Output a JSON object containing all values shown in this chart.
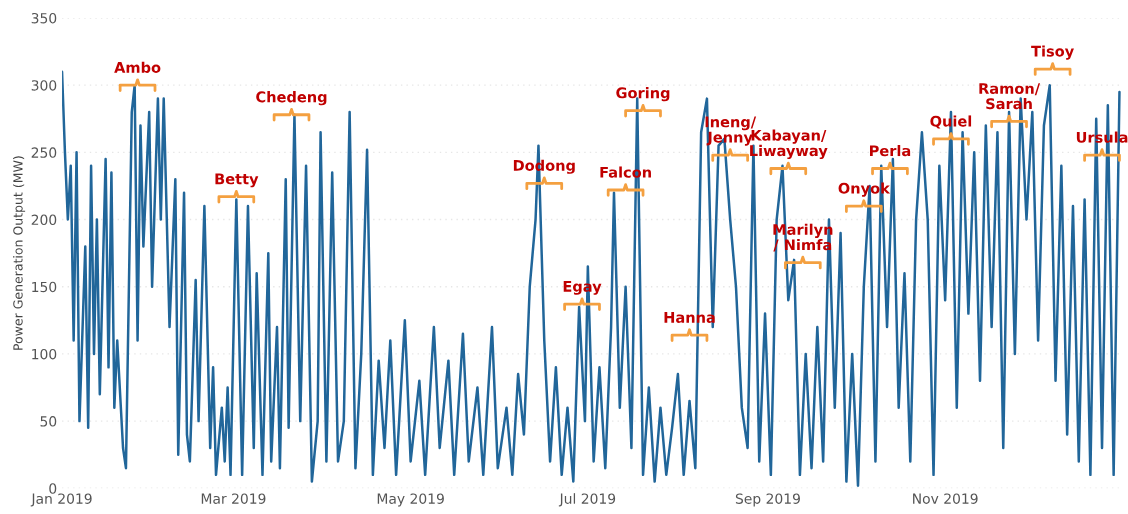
{
  "chart_data": {
    "type": "line",
    "ylabel": "Power Generation Output (MW)",
    "x": [
      "2019-01-01",
      "2019-01-02",
      "2019-01-03",
      "2019-01-04",
      "2019-01-05",
      "2019-01-06",
      "2019-01-07",
      "2019-01-09",
      "2019-01-10",
      "2019-01-11",
      "2019-01-12",
      "2019-01-13",
      "2019-01-14",
      "2019-01-16",
      "2019-01-17",
      "2019-01-18",
      "2019-01-19",
      "2019-01-20",
      "2019-01-22",
      "2019-01-23",
      "2019-01-25",
      "2019-01-26",
      "2019-01-27",
      "2019-01-28",
      "2019-01-29",
      "2019-01-31",
      "2019-02-01",
      "2019-02-03",
      "2019-02-04",
      "2019-02-05",
      "2019-02-07",
      "2019-02-09",
      "2019-02-10",
      "2019-02-12",
      "2019-02-13",
      "2019-02-14",
      "2019-02-16",
      "2019-02-17",
      "2019-02-19",
      "2019-02-21",
      "2019-02-22",
      "2019-02-23",
      "2019-02-25",
      "2019-02-26",
      "2019-02-27",
      "2019-02-28",
      "2019-03-02",
      "2019-03-04",
      "2019-03-06",
      "2019-03-08",
      "2019-03-09",
      "2019-03-11",
      "2019-03-13",
      "2019-03-14",
      "2019-03-16",
      "2019-03-17",
      "2019-03-19",
      "2019-03-20",
      "2019-03-22",
      "2019-03-24",
      "2019-03-26",
      "2019-03-28",
      "2019-03-30",
      "2019-03-31",
      "2019-04-02",
      "2019-04-04",
      "2019-04-06",
      "2019-04-08",
      "2019-04-10",
      "2019-04-12",
      "2019-04-14",
      "2019-04-16",
      "2019-04-18",
      "2019-04-20",
      "2019-04-22",
      "2019-04-24",
      "2019-04-26",
      "2019-04-29",
      "2019-05-01",
      "2019-05-04",
      "2019-05-06",
      "2019-05-09",
      "2019-05-11",
      "2019-05-14",
      "2019-05-16",
      "2019-05-19",
      "2019-05-21",
      "2019-05-24",
      "2019-05-26",
      "2019-05-29",
      "2019-05-31",
      "2019-06-03",
      "2019-06-05",
      "2019-06-07",
      "2019-06-09",
      "2019-06-11",
      "2019-06-13",
      "2019-06-14",
      "2019-06-16",
      "2019-06-18",
      "2019-06-20",
      "2019-06-22",
      "2019-06-24",
      "2019-06-26",
      "2019-06-28",
      "2019-06-30",
      "2019-07-01",
      "2019-07-03",
      "2019-07-05",
      "2019-07-07",
      "2019-07-09",
      "2019-07-10",
      "2019-07-12",
      "2019-07-14",
      "2019-07-16",
      "2019-07-18",
      "2019-07-20",
      "2019-07-22",
      "2019-07-24",
      "2019-07-26",
      "2019-07-28",
      "2019-07-30",
      "2019-08-01",
      "2019-08-03",
      "2019-08-05",
      "2019-08-07",
      "2019-08-09",
      "2019-08-11",
      "2019-08-13",
      "2019-08-15",
      "2019-08-17",
      "2019-08-19",
      "2019-08-21",
      "2019-08-23",
      "2019-08-25",
      "2019-08-27",
      "2019-08-29",
      "2019-08-31",
      "2019-09-02",
      "2019-09-04",
      "2019-09-06",
      "2019-09-08",
      "2019-09-10",
      "2019-09-12",
      "2019-09-14",
      "2019-09-16",
      "2019-09-18",
      "2019-09-20",
      "2019-09-22",
      "2019-09-24",
      "2019-09-26",
      "2019-09-28",
      "2019-09-30",
      "2019-10-02",
      "2019-10-04",
      "2019-10-06",
      "2019-10-08",
      "2019-10-10",
      "2019-10-12",
      "2019-10-14",
      "2019-10-16",
      "2019-10-18",
      "2019-10-20",
      "2019-10-22",
      "2019-10-24",
      "2019-10-26",
      "2019-10-28",
      "2019-10-30",
      "2019-11-01",
      "2019-11-03",
      "2019-11-05",
      "2019-11-07",
      "2019-11-09",
      "2019-11-11",
      "2019-11-13",
      "2019-11-15",
      "2019-11-17",
      "2019-11-19",
      "2019-11-21",
      "2019-11-23",
      "2019-11-25",
      "2019-11-27",
      "2019-11-29",
      "2019-12-01",
      "2019-12-03",
      "2019-12-05",
      "2019-12-07",
      "2019-12-09",
      "2019-12-11",
      "2019-12-13",
      "2019-12-15",
      "2019-12-17",
      "2019-12-19",
      "2019-12-21",
      "2019-12-23",
      "2019-12-25",
      "2019-12-27",
      "2019-12-29",
      "2019-12-31"
    ],
    "series": [
      {
        "color": "#21669a",
        "values": [
          310,
          250,
          200,
          240,
          110,
          250,
          50,
          180,
          45,
          240,
          100,
          200,
          70,
          245,
          90,
          235,
          60,
          110,
          30,
          15,
          280,
          300,
          110,
          270,
          180,
          280,
          150,
          290,
          200,
          290,
          120,
          230,
          25,
          220,
          40,
          20,
          155,
          50,
          210,
          30,
          90,
          10,
          60,
          20,
          75,
          10,
          215,
          10,
          210,
          30,
          160,
          10,
          175,
          20,
          120,
          15,
          230,
          45,
          278,
          50,
          240,
          5,
          50,
          265,
          20,
          235,
          20,
          50,
          280,
          15,
          100,
          252,
          10,
          95,
          30,
          110,
          10,
          125,
          20,
          80,
          10,
          120,
          30,
          95,
          10,
          115,
          20,
          75,
          10,
          120,
          15,
          60,
          10,
          85,
          40,
          150,
          200,
          255,
          110,
          20,
          90,
          10,
          60,
          5,
          135,
          50,
          165,
          20,
          90,
          15,
          120,
          220,
          60,
          150,
          30,
          290,
          10,
          75,
          5,
          60,
          10,
          45,
          85,
          10,
          65,
          15,
          265,
          290,
          120,
          255,
          260,
          200,
          150,
          60,
          30,
          255,
          20,
          130,
          10,
          200,
          240,
          140,
          170,
          10,
          100,
          15,
          120,
          20,
          200,
          60,
          190,
          5,
          100,
          2,
          150,
          225,
          20,
          240,
          120,
          245,
          60,
          160,
          20,
          200,
          265,
          200,
          10,
          240,
          140,
          280,
          60,
          265,
          130,
          250,
          80,
          270,
          120,
          265,
          30,
          280,
          100,
          290,
          200,
          280,
          110,
          270,
          300,
          80,
          240,
          40,
          210,
          20,
          215,
          10,
          275,
          30,
          285,
          10,
          295
        ]
      }
    ],
    "xlim": [
      "2019-01-01",
      "2020-01-01"
    ],
    "xticks": [
      {
        "value": "2019-01-01",
        "label": "Jan 2019"
      },
      {
        "value": "2019-03-01",
        "label": "Mar 2019"
      },
      {
        "value": "2019-05-01",
        "label": "May 2019"
      },
      {
        "value": "2019-07-01",
        "label": "Jul 2019"
      },
      {
        "value": "2019-09-01",
        "label": "Sep 2019"
      },
      {
        "value": "2019-11-01",
        "label": "Nov 2019"
      }
    ],
    "ylim": [
      0,
      350
    ],
    "yticks": [
      0,
      50,
      100,
      150,
      200,
      250,
      300,
      350
    ],
    "grid": "y",
    "annotations": [
      {
        "text": "Ambo",
        "x": "2019-01-27",
        "y": 300
      },
      {
        "text": "Betty",
        "x": "2019-03-02",
        "y": 217
      },
      {
        "text": "Chedeng",
        "x": "2019-03-21",
        "y": 278
      },
      {
        "text": "Dodong",
        "x": "2019-06-16",
        "y": 227
      },
      {
        "text": "Egay",
        "x": "2019-06-29",
        "y": 137
      },
      {
        "text": "Falcon",
        "x": "2019-07-14",
        "y": 222
      },
      {
        "text": "Goring",
        "x": "2019-07-20",
        "y": 281
      },
      {
        "text": "Hanna",
        "x": "2019-08-05",
        "y": 114
      },
      {
        "text": "Ineng/\nJenny",
        "x": "2019-08-19",
        "y": 248
      },
      {
        "text": "Kabayan/\nLiwayway",
        "x": "2019-09-08",
        "y": 238
      },
      {
        "text": "Marilyn\n/ Nimfa",
        "x": "2019-09-13",
        "y": 168
      },
      {
        "text": "Onyok",
        "x": "2019-10-04",
        "y": 210
      },
      {
        "text": "Perla",
        "x": "2019-10-13",
        "y": 238
      },
      {
        "text": "Quiel",
        "x": "2019-11-03",
        "y": 260
      },
      {
        "text": "Ramon/\nSarah",
        "x": "2019-11-23",
        "y": 273
      },
      {
        "text": "Tisoy",
        "x": "2019-12-08",
        "y": 312
      },
      {
        "text": "Ursula",
        "x": "2019-12-25",
        "y": 248
      }
    ]
  }
}
